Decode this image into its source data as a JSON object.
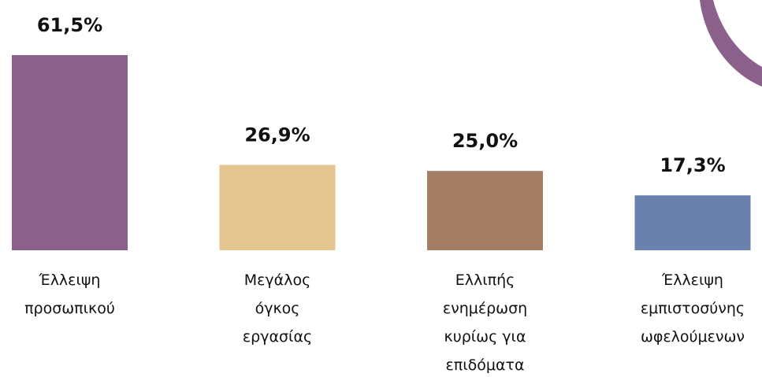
{
  "chart_data": {
    "type": "bar",
    "categories": [
      "Έλλειψη\nπροσωπικού",
      "Μεγάλος\nόγκος\nεργασίας",
      "Ελλιπής\nενημέρωση\nκυρίως για\nεπιδόματα",
      "Έλλειψη\nεμπιστοσύνης\nωφελούμενων"
    ],
    "values": [
      61.5,
      26.9,
      25.0,
      17.3
    ],
    "value_labels": [
      "61,5%",
      "26,9%",
      "25,0%",
      "17,3%"
    ],
    "colors": [
      "#8b618c",
      "#e3c690",
      "#a57c64",
      "#6a81ad"
    ]
  }
}
